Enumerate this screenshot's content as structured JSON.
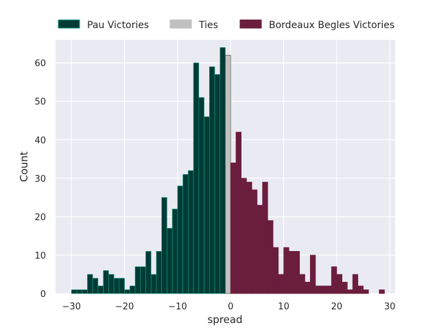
{
  "chart_data": {
    "type": "bar",
    "xlabel": "spread",
    "ylabel": "Count",
    "xlim": [
      -33,
      31
    ],
    "ylim": [
      0,
      66
    ],
    "grid": true,
    "legend_position": "top",
    "xticks": [
      -30,
      -20,
      -10,
      0,
      10,
      20,
      30
    ],
    "xtick_labels": [
      "−30",
      "−20",
      "−10",
      "0",
      "10",
      "20",
      "30"
    ],
    "yticks": [
      0,
      10,
      20,
      30,
      40,
      50,
      60
    ],
    "ytick_labels": [
      "0",
      "10",
      "20",
      "30",
      "40",
      "50",
      "60"
    ],
    "bin_width": 1,
    "series": [
      {
        "name": "Pau Victories",
        "color": "#003b35",
        "edge_color": "#1a9e8a",
        "x": [
          -30,
          -29,
          -28,
          -27,
          -26,
          -25,
          -24,
          -23,
          -22,
          -21,
          -20,
          -19,
          -18,
          -17,
          -16,
          -15,
          -14,
          -13,
          -12,
          -11,
          -10,
          -9,
          -8,
          -7,
          -6,
          -5,
          -4,
          -3,
          -2
        ],
        "values": [
          1,
          1,
          1,
          5,
          4,
          2,
          6,
          5,
          4,
          4,
          1,
          2,
          7,
          7,
          11,
          5,
          11,
          25,
          17,
          22,
          28,
          31,
          32,
          60,
          51,
          46,
          59,
          57,
          64
        ]
      },
      {
        "name": "Ties",
        "color": "#c0c0c0",
        "edge_color": "#404040",
        "x": [
          -1
        ],
        "values": [
          62
        ]
      },
      {
        "name": "Bordeaux Begles Victories",
        "color": "#6b1d3c",
        "edge_color": "#6b1d3c",
        "x": [
          0,
          1,
          2,
          3,
          4,
          5,
          6,
          7,
          8,
          9,
          10,
          11,
          12,
          13,
          14,
          15,
          16,
          17,
          18,
          19,
          20,
          21,
          22,
          23,
          24,
          25,
          26,
          27,
          28
        ],
        "values": [
          34,
          42,
          30,
          29,
          27,
          23,
          29,
          19,
          12,
          5,
          12,
          11,
          11,
          5,
          3,
          10,
          2,
          2,
          2,
          7,
          5,
          3,
          1,
          5,
          2,
          1,
          0,
          0,
          1
        ]
      }
    ]
  },
  "extra_series_note_removed": null
}
